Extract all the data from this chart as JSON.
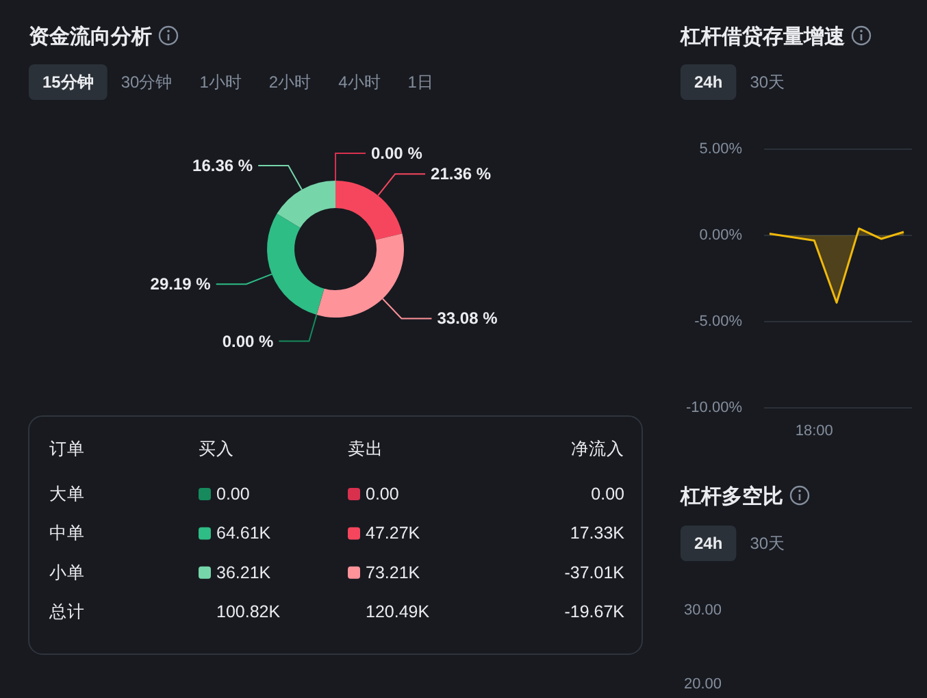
{
  "chart_data": [
    {
      "type": "donut",
      "title": "资金流向分析",
      "annotations": [
        "15分钟",
        "30分钟",
        "1小时",
        "2小时",
        "4小时",
        "1日"
      ],
      "categories": [
        null,
        null,
        null,
        null,
        null,
        null
      ],
      "values": [
        0,
        21.36,
        33.08,
        0,
        29.19,
        16.36
      ],
      "colors": [
        "#d9304e",
        "#f6465d",
        "#ff939a",
        "#168a5c",
        "#2ebd85",
        "#76d6aa"
      ],
      "value_labels": [
        "0.00 %",
        "21.36 %",
        "33.08 %",
        "0.00 %",
        "29.19 %",
        "16.36 %"
      ]
    },
    {
      "type": "other",
      "annotations": [
        "订单"
      ],
      "categories": [
        "大单",
        "中单",
        "小单",
        "总计"
      ],
      "series": [
        {
          "name": "买入",
          "colors": [
            "#168a5c",
            "#2ebd85",
            "#76d6aa",
            null
          ],
          "values": [
            0,
            64.61,
            36.21,
            100.82
          ],
          "value_labels": [
            "0.00",
            "64.61K",
            "36.21K",
            "100.82K"
          ]
        },
        {
          "name": "卖出",
          "colors": [
            "#d9304e",
            "#f6465d",
            "#ff939a",
            null
          ],
          "values": [
            0,
            47.27,
            73.21,
            120.49
          ],
          "value_labels": [
            "0.00",
            "47.27K",
            "73.21K",
            "120.49K"
          ]
        },
        {
          "name": "净流入",
          "values": [
            0,
            17.33,
            -37.01,
            -19.67
          ],
          "value_labels": [
            "0.00",
            "17.33K",
            "-37.01K",
            "-19.67K"
          ]
        }
      ]
    },
    {
      "type": "area",
      "title": "杠杆借贷存量增速",
      "annotations": [
        "24h",
        "30天"
      ],
      "categories": [
        null,
        null,
        "18:00",
        null,
        null,
        null,
        null
      ],
      "values": [
        0.1,
        -0.1,
        -0.3,
        -3.9,
        0.4,
        -0.2,
        0.2
      ],
      "color": "#f0b90b",
      "ylim": [
        -10,
        5
      ],
      "yticks": [
        {
          "value": 5,
          "label": "5.00%"
        },
        {
          "value": 0,
          "label": "0.00%"
        },
        {
          "value": -5,
          "label": "-5.00%"
        },
        {
          "value": -10,
          "label": "-10.00%"
        }
      ],
      "grid": "y"
    },
    {
      "type": "other",
      "title": "杠杆多空比",
      "annotations": [
        "24h",
        "30天",
        "30.00",
        "20.00"
      ]
    }
  ]
}
